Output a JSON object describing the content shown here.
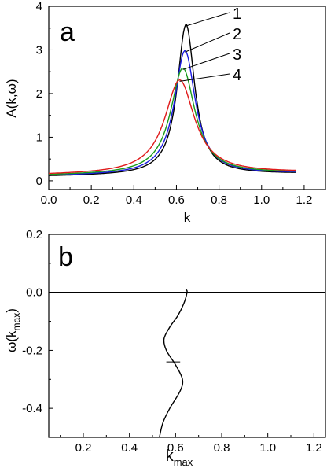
{
  "chart_data": [
    {
      "type": "line",
      "panel_label": "a",
      "xlabel": "k",
      "ylabel": "A(k,ω)",
      "xlim": [
        0.0,
        1.3
      ],
      "ylim": [
        -0.2,
        4.0
      ],
      "xticks": [
        "0.0",
        "0.2",
        "0.4",
        "0.6",
        "0.8",
        "1.0",
        "1.2"
      ],
      "yticks": [
        "0",
        "1",
        "2",
        "3",
        "4"
      ],
      "series": [
        {
          "name": "1",
          "color": "#000000",
          "peak_x": 0.645,
          "peak_y": 3.55,
          "baseline": 0.1,
          "width": 0.05,
          "tail": 0.16
        },
        {
          "name": "2",
          "color": "#1a1ae0",
          "peak_x": 0.64,
          "peak_y": 2.95,
          "baseline": 0.11,
          "width": 0.06,
          "tail": 0.17
        },
        {
          "name": "3",
          "color": "#1a9a1a",
          "peak_x": 0.63,
          "peak_y": 2.55,
          "baseline": 0.12,
          "width": 0.07,
          "tail": 0.18
        },
        {
          "name": "4",
          "color": "#e01a1a",
          "peak_x": 0.615,
          "peak_y": 2.28,
          "baseline": 0.13,
          "width": 0.085,
          "tail": 0.19
        }
      ]
    },
    {
      "type": "line",
      "panel_label": "b",
      "xlabel": "k",
      "xlabel_sub": "max",
      "ylabel": "ω(k",
      "ylabel_sub": "max",
      "ylabel_close": ")",
      "xlim": [
        0.05,
        1.25
      ],
      "ylim": [
        -0.5,
        0.2
      ],
      "xticks": [
        "0.2",
        "0.4",
        "0.6",
        "0.8",
        "1.0",
        "1.2"
      ],
      "yticks": [
        "0.2",
        "0.0",
        "-0.2",
        "-0.4"
      ],
      "reference_line_y": 0.0,
      "points": [
        [
          0.53,
          -0.5
        ],
        [
          0.545,
          -0.45
        ],
        [
          0.575,
          -0.4
        ],
        [
          0.62,
          -0.34
        ],
        [
          0.63,
          -0.3
        ],
        [
          0.6,
          -0.25
        ],
        [
          0.56,
          -0.2
        ],
        [
          0.55,
          -0.16
        ],
        [
          0.575,
          -0.12
        ],
        [
          0.61,
          -0.08
        ],
        [
          0.635,
          -0.04
        ],
        [
          0.65,
          0.0
        ],
        [
          0.645,
          0.01
        ]
      ]
    }
  ]
}
